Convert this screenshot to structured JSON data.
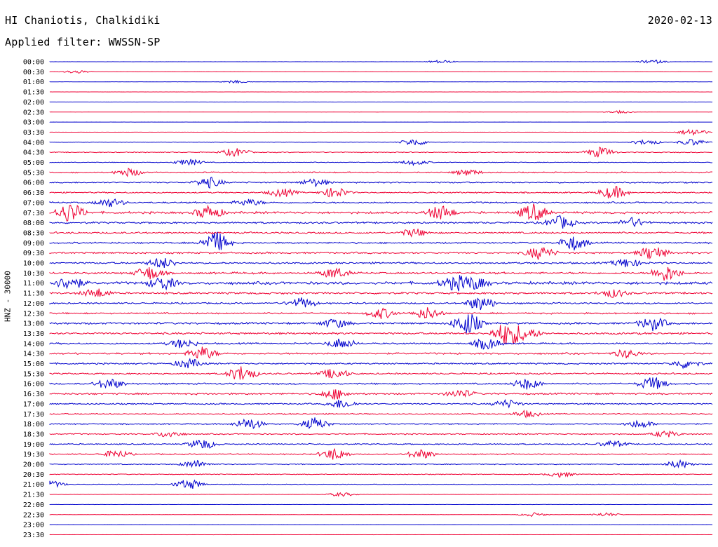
{
  "header": {
    "station": "HI Chaniotis, Chalkidiki",
    "date": "2020-02-13",
    "filter": "Applied filter: WWSSN-SP"
  },
  "chart_data": {
    "type": "line",
    "title": "HI Chaniotis, Chalkidiki",
    "date": "2020-02-13",
    "filter": "WWSSN-SP",
    "ylabel": "HNZ - 30000",
    "xlabel": "",
    "trace_colors": [
      "#0000cc",
      "#ee0033"
    ],
    "rows": [
      {
        "time": "00:00",
        "activity": 0.05,
        "events": [
          [
            0.59,
            0.5
          ],
          [
            0.91,
            0.6
          ]
        ]
      },
      {
        "time": "00:30",
        "activity": 0.04,
        "events": [
          [
            0.04,
            0.5
          ]
        ]
      },
      {
        "time": "01:00",
        "activity": 0.04,
        "events": [
          [
            0.28,
            0.4
          ]
        ]
      },
      {
        "time": "01:30",
        "activity": 0.03,
        "events": []
      },
      {
        "time": "02:00",
        "activity": 0.03,
        "events": []
      },
      {
        "time": "02:30",
        "activity": 0.03,
        "events": [
          [
            0.86,
            0.4
          ]
        ]
      },
      {
        "time": "03:00",
        "activity": 0.03,
        "events": []
      },
      {
        "time": "03:30",
        "activity": 0.04,
        "events": [
          [
            0.97,
            1.2
          ]
        ]
      },
      {
        "time": "04:00",
        "activity": 0.12,
        "events": [
          [
            0.55,
            1.1
          ],
          [
            0.9,
            0.8
          ],
          [
            0.97,
            1.0
          ]
        ]
      },
      {
        "time": "04:30",
        "activity": 0.22,
        "events": [
          [
            0.28,
            1.3
          ],
          [
            0.83,
            1.6
          ]
        ]
      },
      {
        "time": "05:00",
        "activity": 0.18,
        "events": [
          [
            0.21,
            1.0
          ],
          [
            0.55,
            0.8
          ]
        ]
      },
      {
        "time": "05:30",
        "activity": 0.3,
        "events": [
          [
            0.12,
            1.2
          ],
          [
            0.63,
            0.9
          ]
        ]
      },
      {
        "time": "06:00",
        "activity": 0.35,
        "events": [
          [
            0.24,
            1.6
          ],
          [
            0.4,
            1.2
          ]
        ]
      },
      {
        "time": "06:30",
        "activity": 0.35,
        "events": [
          [
            0.35,
            1.3
          ],
          [
            0.43,
            1.6
          ],
          [
            0.85,
            2.0
          ]
        ]
      },
      {
        "time": "07:00",
        "activity": 0.4,
        "events": [
          [
            0.09,
            1.3
          ],
          [
            0.3,
            1.0
          ]
        ]
      },
      {
        "time": "07:30",
        "activity": 0.55,
        "events": [
          [
            0.03,
            3.0
          ],
          [
            0.24,
            2.0
          ],
          [
            0.59,
            2.2
          ],
          [
            0.73,
            2.6
          ]
        ]
      },
      {
        "time": "08:00",
        "activity": 0.45,
        "events": [
          [
            0.77,
            2.0
          ],
          [
            0.88,
            1.4
          ]
        ]
      },
      {
        "time": "08:30",
        "activity": 0.45,
        "events": [
          [
            0.55,
            1.2
          ]
        ]
      },
      {
        "time": "09:00",
        "activity": 0.4,
        "events": [
          [
            0.25,
            3.4
          ],
          [
            0.79,
            2.2
          ]
        ]
      },
      {
        "time": "09:30",
        "activity": 0.45,
        "events": [
          [
            0.74,
            2.0
          ],
          [
            0.91,
            2.2
          ]
        ]
      },
      {
        "time": "10:00",
        "activity": 0.45,
        "events": [
          [
            0.17,
            1.6
          ],
          [
            0.87,
            1.4
          ]
        ]
      },
      {
        "time": "10:30",
        "activity": 0.5,
        "events": [
          [
            0.15,
            2.0
          ],
          [
            0.43,
            1.6
          ],
          [
            0.93,
            2.4
          ]
        ]
      },
      {
        "time": "11:00",
        "activity": 0.7,
        "events": [
          [
            0.03,
            2.0
          ],
          [
            0.17,
            2.0
          ],
          [
            0.61,
            2.0
          ],
          [
            0.64,
            1.8
          ]
        ]
      },
      {
        "time": "11:30",
        "activity": 0.5,
        "events": [
          [
            0.07,
            1.4
          ],
          [
            0.85,
            1.2
          ]
        ]
      },
      {
        "time": "12:00",
        "activity": 0.4,
        "events": [
          [
            0.38,
            1.6
          ],
          [
            0.65,
            2.2
          ]
        ]
      },
      {
        "time": "12:30",
        "activity": 0.4,
        "events": [
          [
            0.5,
            1.6
          ],
          [
            0.57,
            1.8
          ]
        ]
      },
      {
        "time": "13:00",
        "activity": 0.5,
        "events": [
          [
            0.43,
            1.4
          ],
          [
            0.63,
            3.4
          ],
          [
            0.91,
            2.0
          ]
        ]
      },
      {
        "time": "13:30",
        "activity": 0.5,
        "events": [
          [
            0.69,
            3.6
          ],
          [
            0.72,
            1.6
          ]
        ]
      },
      {
        "time": "14:00",
        "activity": 0.4,
        "events": [
          [
            0.2,
            1.4
          ],
          [
            0.44,
            1.6
          ],
          [
            0.66,
            1.8
          ]
        ]
      },
      {
        "time": "14:30",
        "activity": 0.45,
        "events": [
          [
            0.23,
            2.0
          ],
          [
            0.87,
            1.2
          ]
        ]
      },
      {
        "time": "15:00",
        "activity": 0.4,
        "events": [
          [
            0.21,
            1.4
          ],
          [
            0.96,
            1.4
          ]
        ]
      },
      {
        "time": "15:30",
        "activity": 0.4,
        "events": [
          [
            0.29,
            2.4
          ],
          [
            0.43,
            1.6
          ]
        ]
      },
      {
        "time": "16:00",
        "activity": 0.4,
        "events": [
          [
            0.09,
            1.6
          ],
          [
            0.72,
            1.6
          ],
          [
            0.91,
            2.0
          ]
        ]
      },
      {
        "time": "16:30",
        "activity": 0.45,
        "events": [
          [
            0.43,
            1.6
          ],
          [
            0.62,
            1.2
          ]
        ]
      },
      {
        "time": "17:00",
        "activity": 0.35,
        "events": [
          [
            0.44,
            1.4
          ],
          [
            0.69,
            1.2
          ]
        ]
      },
      {
        "time": "17:30",
        "activity": 0.3,
        "events": [
          [
            0.72,
            1.0
          ]
        ]
      },
      {
        "time": "18:00",
        "activity": 0.3,
        "events": [
          [
            0.3,
            1.8
          ],
          [
            0.4,
            1.8
          ],
          [
            0.89,
            1.2
          ]
        ]
      },
      {
        "time": "18:30",
        "activity": 0.3,
        "events": [
          [
            0.18,
            1.0
          ],
          [
            0.93,
            1.0
          ]
        ]
      },
      {
        "time": "19:00",
        "activity": 0.3,
        "events": [
          [
            0.23,
            1.6
          ],
          [
            0.85,
            1.0
          ]
        ]
      },
      {
        "time": "19:30",
        "activity": 0.3,
        "events": [
          [
            0.1,
            1.2
          ],
          [
            0.43,
            1.8
          ],
          [
            0.56,
            1.4
          ]
        ]
      },
      {
        "time": "20:00",
        "activity": 0.25,
        "events": [
          [
            0.22,
            1.2
          ],
          [
            0.95,
            1.2
          ]
        ]
      },
      {
        "time": "20:30",
        "activity": 0.2,
        "events": [
          [
            0.77,
            0.8
          ]
        ]
      },
      {
        "time": "21:00",
        "activity": 0.18,
        "events": [
          [
            0.0,
            1.2
          ],
          [
            0.21,
            1.6
          ]
        ]
      },
      {
        "time": "21:30",
        "activity": 0.1,
        "events": [
          [
            0.44,
            0.6
          ]
        ]
      },
      {
        "time": "22:00",
        "activity": 0.06,
        "events": []
      },
      {
        "time": "22:30",
        "activity": 0.06,
        "events": [
          [
            0.73,
            0.6
          ],
          [
            0.84,
            0.6
          ]
        ]
      },
      {
        "time": "23:00",
        "activity": 0.04,
        "events": []
      },
      {
        "time": "23:30",
        "activity": 0.04,
        "events": []
      }
    ]
  }
}
